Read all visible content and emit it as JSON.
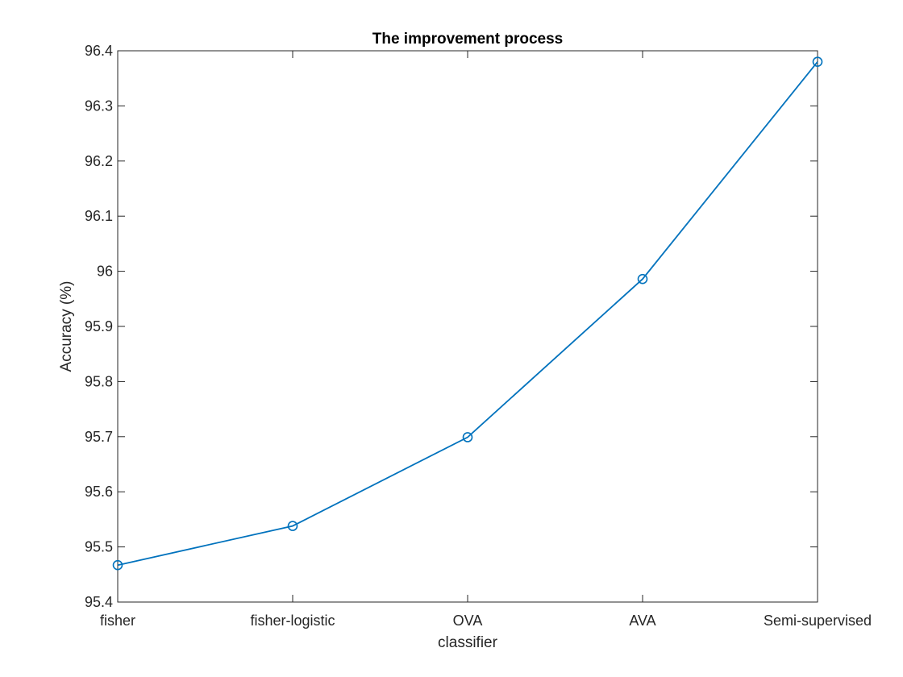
{
  "chart_data": {
    "type": "line",
    "title": "The improvement process",
    "xlabel": "classifier",
    "ylabel": "Accuracy (%)",
    "categories": [
      "fisher",
      "fisher-logistic",
      "OVA",
      "AVA",
      "Semi-supervised"
    ],
    "series": [
      {
        "values": [
          95.467,
          95.538,
          95.699,
          95.986,
          96.38
        ],
        "marker": "circle"
      }
    ],
    "ylim": [
      95.4,
      96.4
    ],
    "yticks": [
      95.4,
      95.5,
      95.6,
      95.7,
      95.8,
      95.9,
      96,
      96.1,
      96.2,
      96.3,
      96.4
    ],
    "ytick_labels": [
      "95.4",
      "95.5",
      "95.6",
      "95.7",
      "95.8",
      "95.9",
      "96",
      "96.1",
      "96.2",
      "96.3",
      "96.4"
    ],
    "grid": false,
    "legend": "none",
    "colors": {
      "line": "#0072BD",
      "axis": "#262626",
      "background": "#ffffff"
    }
  }
}
